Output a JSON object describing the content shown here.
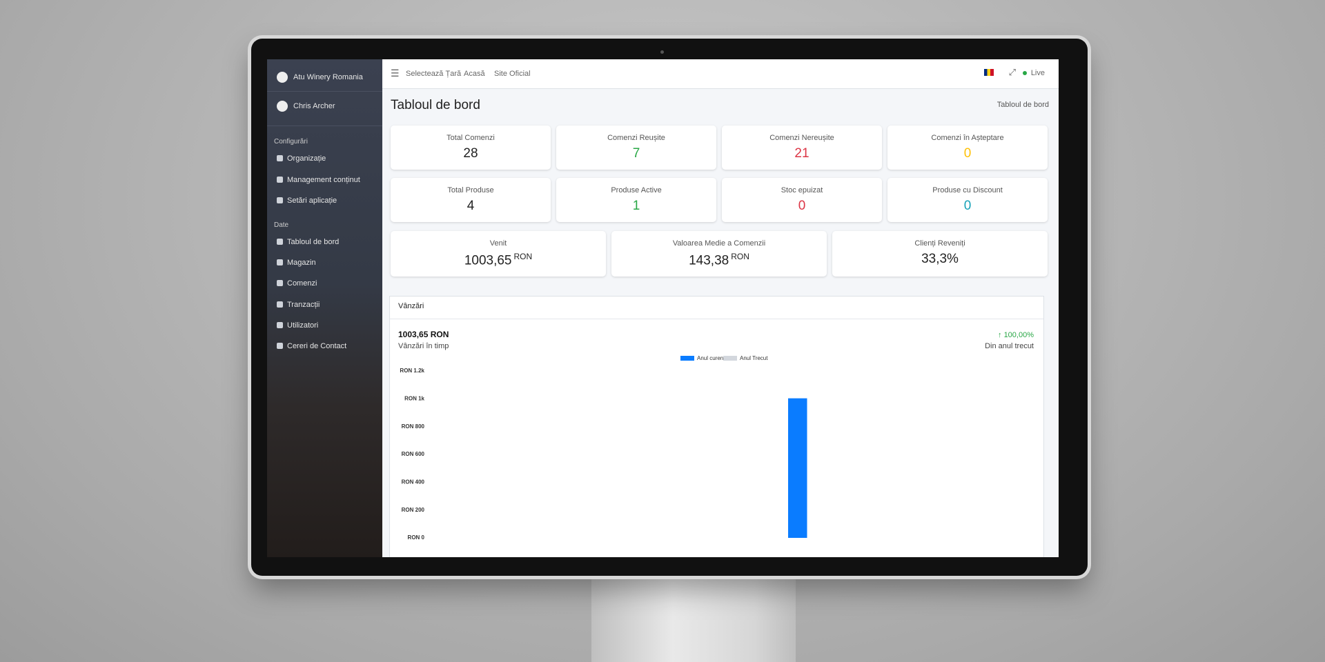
{
  "sidebar": {
    "brand": "Atu Winery Romania",
    "user": "Chris Archer",
    "sections": [
      {
        "title": "Configurări",
        "items": [
          "Organizație",
          "Management conținut",
          "Setări aplicație"
        ]
      },
      {
        "title": "Date",
        "items": [
          "Tabloul de bord",
          "Magazin",
          "Comenzi",
          "Tranzacții",
          "Utilizatori",
          "Cereri de Contact"
        ]
      }
    ]
  },
  "navbar": {
    "links": [
      "Selectează Țară",
      "Acasă",
      "Site Oficial"
    ],
    "status": "Live"
  },
  "page": {
    "title": "Tabloul de bord",
    "breadcrumb": "Tabloul de bord"
  },
  "stats": [
    [
      {
        "label": "Total Comenzi",
        "value": 28
      },
      {
        "label": "Comenzi Reușite",
        "value": 7,
        "color": "#28a745"
      },
      {
        "label": "Comenzi Nereușite",
        "value": 21,
        "color": "#dc3545"
      },
      {
        "label": "Comenzi în Așteptare",
        "value": 0,
        "color": "#ffc107"
      }
    ],
    [
      {
        "label": "Total Produse",
        "value": 4
      },
      {
        "label": "Produse Active",
        "value": 1,
        "color": "#28a745"
      },
      {
        "label": "Stoc epuizat",
        "value": 0,
        "color": "#dc3545"
      },
      {
        "label": "Produse cu Discount",
        "value": 0,
        "color": "#17a2b8"
      }
    ],
    [
      {
        "label": "Venit",
        "value": "1003,65",
        "unit": "RON"
      },
      {
        "label": "Valoarea Medie a Comenzii",
        "value": "143,38",
        "unit": "RON"
      },
      {
        "label": "Clienți Reveniți",
        "value": "33,3%"
      }
    ]
  ],
  "sales": {
    "title": "Vânzări",
    "total": "1003,65 RON",
    "subtitle": "Vânzări în timp",
    "change": "100,00%",
    "change_note": "Din anul trecut"
  },
  "chart_data": {
    "type": "bar",
    "categories": [
      null,
      null,
      null,
      null,
      null,
      null,
      null,
      null,
      null,
      null,
      null,
      null
    ],
    "series": [
      {
        "name": "Anul curent",
        "color": "#0a7cff",
        "values": [
          0,
          0,
          0,
          0,
          0,
          0,
          0,
          1003.65,
          0,
          0,
          0,
          0
        ]
      },
      {
        "name": "Anul Trecut",
        "color": "#d3d7dd",
        "values": [
          0,
          0,
          0,
          0,
          0,
          0,
          0,
          0,
          0,
          0,
          0,
          0
        ]
      }
    ],
    "ylim": [
      0,
      1200
    ],
    "yticks": [
      {
        "value": 0,
        "label": "RON 0"
      },
      {
        "value": 200,
        "label": "RON 200"
      },
      {
        "value": 400,
        "label": "RON 400"
      },
      {
        "value": 600,
        "label": "RON 600"
      },
      {
        "value": 800,
        "label": "RON 800"
      },
      {
        "value": 1000,
        "label": "RON 1k"
      },
      {
        "value": 1200,
        "label": "RON 1.2k"
      }
    ]
  }
}
